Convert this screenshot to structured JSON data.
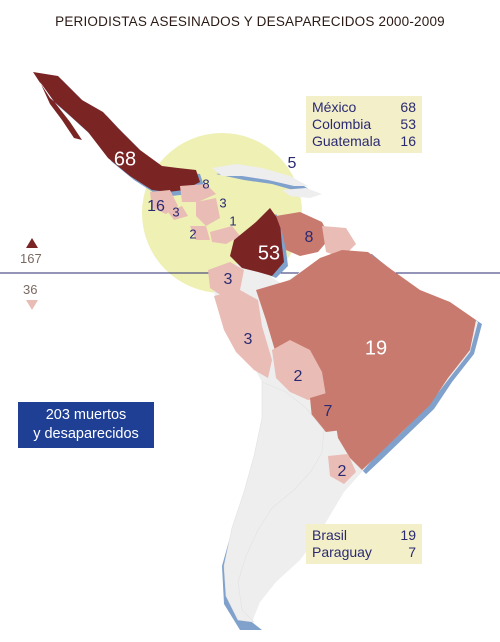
{
  "title": "PERIODISTAS ASESINADOS Y DESAPARECIDOS 2000-2009",
  "legend_top": [
    {
      "country": "México",
      "value": "68"
    },
    {
      "country": "Colombia",
      "value": "53"
    },
    {
      "country": "Guatemala",
      "value": "16"
    }
  ],
  "legend_bottom": [
    {
      "country": "Brasil",
      "value": "19"
    },
    {
      "country": "Paraguay",
      "value": "7"
    }
  ],
  "total": {
    "line1": "203 muertos",
    "line2": "y desaparecidos"
  },
  "above_line": "167",
  "below_line": "36",
  "labels": {
    "mexico": "68",
    "cuba": "5",
    "honduras": "8",
    "guatemala": "16",
    "elsalvador": "3",
    "nicaragua": "3",
    "costarica": "2",
    "panama": "1",
    "colombia": "53",
    "venezuela": "8",
    "ecuador": "3",
    "peru": "3",
    "brazil": "19",
    "bolivia": "2",
    "paraguay": "7",
    "uruguay": "2"
  },
  "colors": {
    "dark": "#7b2424",
    "medium": "#c97a6e",
    "light": "#e9bcb6",
    "pale": "#eeeeee",
    "circle": "#eef0b4",
    "shadow": "#7fa1cc",
    "text": "#2a2a72",
    "totalBox": "#1f3f95"
  }
}
